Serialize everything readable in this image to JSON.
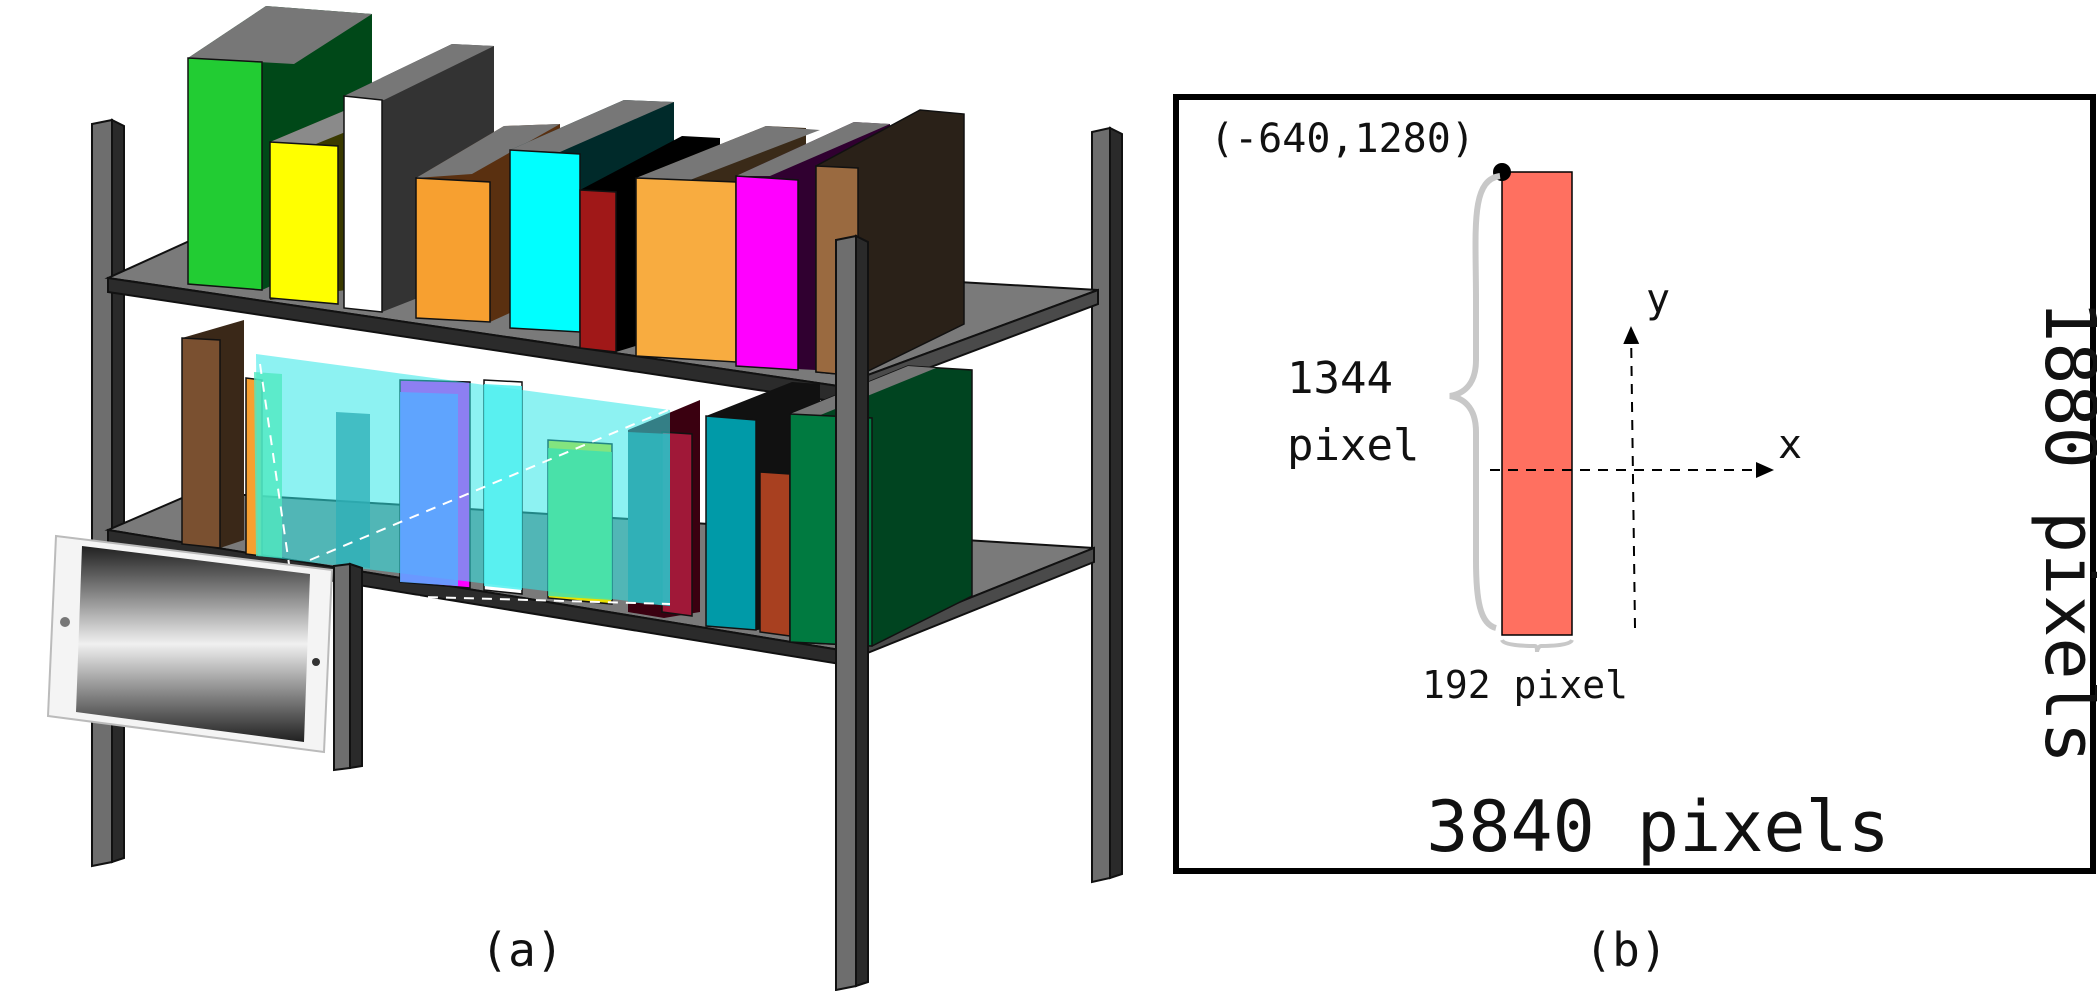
{
  "panel_a": {
    "caption": "(a)"
  },
  "panel_b": {
    "caption": "(b)",
    "corner_label": "(-640,1280)",
    "height_value": "1344",
    "height_unit": "pixel",
    "width_label": "192 pixel",
    "screen_width_label": "3840 pixels",
    "screen_height_label": "1880 pixels",
    "x_axis_label": "x",
    "y_axis_label": "y"
  },
  "colors": {
    "rectangle": "#ff7060",
    "shelf": "#7a7a7a",
    "post": "#6e6e6e",
    "projection_overlay": "#30e8e8",
    "frame": "#000000"
  },
  "book_colors_top": [
    "#22cc33",
    "#ffff00",
    "#ffffff",
    "#f7a030",
    "#00ffff",
    "#a01818",
    "#f8ac40",
    "#ff00ff",
    "#9a6a40"
  ],
  "book_colors_bottom": [
    "#7a5030",
    "#f7a030",
    "#ff00ff",
    "#ffffff",
    "#e8e000",
    "#a01818",
    "#009aa8",
    "#a84020",
    "#007a40"
  ]
}
